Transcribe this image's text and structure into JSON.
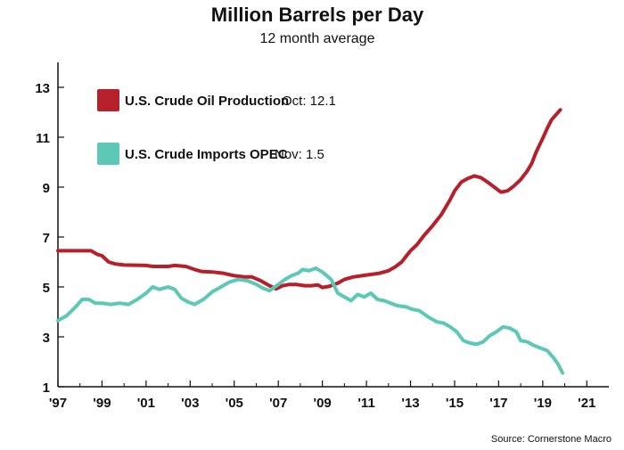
{
  "chart_data": {
    "type": "line",
    "title": "Million Barrels per Day",
    "subtitle": "12 month average",
    "source": "Source: Cornerstone Macro",
    "xlim": [
      1997,
      2022
    ],
    "ylim": [
      1,
      14
    ],
    "y_ticks": [
      1,
      3,
      5,
      7,
      9,
      11,
      13
    ],
    "x_ticks": [
      {
        "value": 1997,
        "label": "'97"
      },
      {
        "value": 1999,
        "label": "'99"
      },
      {
        "value": 2001,
        "label": "'01"
      },
      {
        "value": 2003,
        "label": "'03"
      },
      {
        "value": 2005,
        "label": "'05"
      },
      {
        "value": 2007,
        "label": "'07"
      },
      {
        "value": 2009,
        "label": "'09"
      },
      {
        "value": 2011,
        "label": "'11"
      },
      {
        "value": 2013,
        "label": "'13"
      },
      {
        "value": 2015,
        "label": "'15"
      },
      {
        "value": 2017,
        "label": "'17"
      },
      {
        "value": 2019,
        "label": "'19"
      },
      {
        "value": 2021,
        "label": "'21"
      }
    ],
    "grid": false,
    "legend_position": "top-left",
    "series": [
      {
        "name": "U.S. Crude Oil Production",
        "latest": "Oct: 12.1",
        "color": "#b5202a",
        "points": [
          [
            1997.0,
            6.45
          ],
          [
            1997.5,
            6.45
          ],
          [
            1998.0,
            6.45
          ],
          [
            1998.5,
            6.45
          ],
          [
            1998.8,
            6.3
          ],
          [
            1999.0,
            6.25
          ],
          [
            1999.3,
            6.0
          ],
          [
            1999.6,
            5.92
          ],
          [
            2000.0,
            5.88
          ],
          [
            2000.5,
            5.87
          ],
          [
            2001.0,
            5.86
          ],
          [
            2001.3,
            5.82
          ],
          [
            2001.6,
            5.82
          ],
          [
            2002.0,
            5.82
          ],
          [
            2002.3,
            5.86
          ],
          [
            2002.8,
            5.82
          ],
          [
            2003.2,
            5.7
          ],
          [
            2003.5,
            5.62
          ],
          [
            2004.0,
            5.6
          ],
          [
            2004.5,
            5.55
          ],
          [
            2005.0,
            5.45
          ],
          [
            2005.5,
            5.4
          ],
          [
            2005.8,
            5.4
          ],
          [
            2006.2,
            5.25
          ],
          [
            2006.6,
            5.05
          ],
          [
            2006.9,
            4.92
          ],
          [
            2007.2,
            5.05
          ],
          [
            2007.5,
            5.1
          ],
          [
            2007.8,
            5.1
          ],
          [
            2008.2,
            5.05
          ],
          [
            2008.5,
            5.05
          ],
          [
            2008.8,
            5.08
          ],
          [
            2009.0,
            4.98
          ],
          [
            2009.3,
            5.02
          ],
          [
            2009.7,
            5.15
          ],
          [
            2010.0,
            5.3
          ],
          [
            2010.4,
            5.4
          ],
          [
            2010.8,
            5.45
          ],
          [
            2011.2,
            5.5
          ],
          [
            2011.6,
            5.55
          ],
          [
            2012.0,
            5.65
          ],
          [
            2012.3,
            5.8
          ],
          [
            2012.6,
            6.0
          ],
          [
            2013.0,
            6.45
          ],
          [
            2013.3,
            6.7
          ],
          [
            2013.6,
            7.05
          ],
          [
            2014.0,
            7.45
          ],
          [
            2014.4,
            7.9
          ],
          [
            2014.8,
            8.5
          ],
          [
            2015.0,
            8.85
          ],
          [
            2015.3,
            9.2
          ],
          [
            2015.6,
            9.35
          ],
          [
            2015.9,
            9.45
          ],
          [
            2016.2,
            9.38
          ],
          [
            2016.5,
            9.2
          ],
          [
            2016.8,
            9.0
          ],
          [
            2017.1,
            8.8
          ],
          [
            2017.4,
            8.85
          ],
          [
            2017.7,
            9.05
          ],
          [
            2018.0,
            9.3
          ],
          [
            2018.3,
            9.65
          ],
          [
            2018.5,
            9.95
          ],
          [
            2018.7,
            10.4
          ],
          [
            2019.0,
            10.95
          ],
          [
            2019.2,
            11.35
          ],
          [
            2019.4,
            11.7
          ],
          [
            2019.6,
            11.9
          ],
          [
            2019.8,
            12.1
          ]
        ]
      },
      {
        "name": "U.S. Crude Imports OPEC",
        "latest": "Nov: 1.5",
        "color": "#5cc8b5",
        "points": [
          [
            1997.0,
            3.65
          ],
          [
            1997.4,
            3.85
          ],
          [
            1997.8,
            4.2
          ],
          [
            1998.1,
            4.5
          ],
          [
            1998.4,
            4.5
          ],
          [
            1998.7,
            4.35
          ],
          [
            1999.0,
            4.35
          ],
          [
            1999.4,
            4.3
          ],
          [
            1999.8,
            4.35
          ],
          [
            2000.2,
            4.3
          ],
          [
            2000.6,
            4.5
          ],
          [
            2001.0,
            4.75
          ],
          [
            2001.3,
            5.0
          ],
          [
            2001.6,
            4.9
          ],
          [
            2002.0,
            5.0
          ],
          [
            2002.3,
            4.9
          ],
          [
            2002.6,
            4.55
          ],
          [
            2002.9,
            4.4
          ],
          [
            2003.2,
            4.3
          ],
          [
            2003.6,
            4.5
          ],
          [
            2004.0,
            4.8
          ],
          [
            2004.4,
            5.0
          ],
          [
            2004.8,
            5.2
          ],
          [
            2005.2,
            5.3
          ],
          [
            2005.6,
            5.25
          ],
          [
            2006.0,
            5.1
          ],
          [
            2006.3,
            4.95
          ],
          [
            2006.6,
            4.85
          ],
          [
            2007.0,
            5.1
          ],
          [
            2007.3,
            5.3
          ],
          [
            2007.6,
            5.45
          ],
          [
            2007.9,
            5.55
          ],
          [
            2008.1,
            5.7
          ],
          [
            2008.4,
            5.65
          ],
          [
            2008.7,
            5.75
          ],
          [
            2009.0,
            5.6
          ],
          [
            2009.4,
            5.3
          ],
          [
            2009.7,
            4.75
          ],
          [
            2010.0,
            4.6
          ],
          [
            2010.3,
            4.45
          ],
          [
            2010.6,
            4.7
          ],
          [
            2010.9,
            4.6
          ],
          [
            2011.2,
            4.75
          ],
          [
            2011.5,
            4.5
          ],
          [
            2011.8,
            4.45
          ],
          [
            2012.1,
            4.35
          ],
          [
            2012.4,
            4.25
          ],
          [
            2012.8,
            4.2
          ],
          [
            2013.1,
            4.1
          ],
          [
            2013.4,
            4.05
          ],
          [
            2013.8,
            3.8
          ],
          [
            2014.2,
            3.6
          ],
          [
            2014.5,
            3.55
          ],
          [
            2014.8,
            3.4
          ],
          [
            2015.1,
            3.2
          ],
          [
            2015.4,
            2.85
          ],
          [
            2015.7,
            2.75
          ],
          [
            2016.0,
            2.7
          ],
          [
            2016.3,
            2.8
          ],
          [
            2016.6,
            3.05
          ],
          [
            2016.9,
            3.2
          ],
          [
            2017.2,
            3.4
          ],
          [
            2017.5,
            3.35
          ],
          [
            2017.8,
            3.2
          ],
          [
            2018.0,
            2.85
          ],
          [
            2018.3,
            2.8
          ],
          [
            2018.6,
            2.65
          ],
          [
            2018.9,
            2.55
          ],
          [
            2019.2,
            2.45
          ],
          [
            2019.5,
            2.15
          ],
          [
            2019.7,
            1.9
          ],
          [
            2019.9,
            1.55
          ]
        ]
      }
    ]
  }
}
